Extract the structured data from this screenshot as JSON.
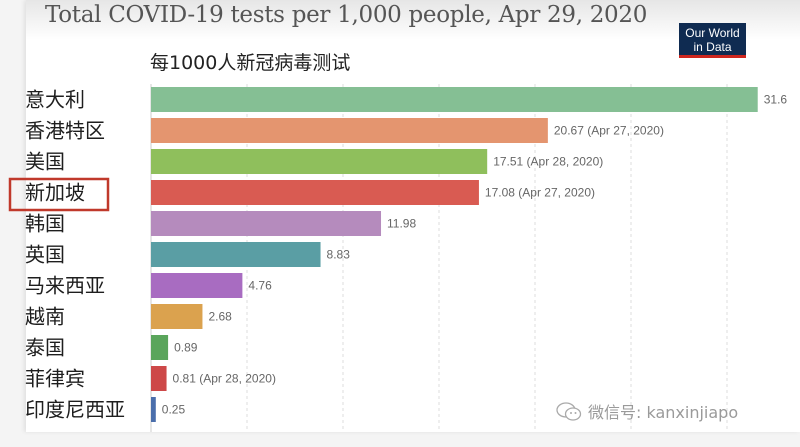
{
  "header": {
    "title": "Total COVID-19 tests per 1,000 people, Apr 29, 2020",
    "subtitle": "每1000人新冠病毒测试",
    "logo_line1": "Our World",
    "logo_line2": "in Data"
  },
  "watermark": {
    "text": "微信号: kanxinjiapo",
    "icon": "wechat-icon"
  },
  "highlight": {
    "category": "新加坡",
    "color": "#c0392b"
  },
  "chart_data": {
    "type": "bar",
    "orientation": "horizontal",
    "title": "Total COVID-19 tests per 1,000 people, Apr 29, 2020",
    "subtitle": "每1000人新冠病毒测试",
    "xlabel": "",
    "ylabel": "",
    "xlim": [
      0,
      35
    ],
    "grid": true,
    "gridline_step": 5,
    "categories": [
      "意大利",
      "香港特区",
      "美国",
      "新加坡",
      "韩国",
      "英国",
      "马来西亚",
      "越南",
      "泰国",
      "菲律宾",
      "印度尼西亚"
    ],
    "values": [
      31.6,
      20.67,
      17.51,
      17.08,
      11.98,
      8.83,
      4.76,
      2.68,
      0.89,
      0.81,
      0.25
    ],
    "value_labels": [
      "31.6",
      "20.67 (Apr 27, 2020)",
      "17.51 (Apr 28, 2020)",
      "17.08 (Apr 27, 2020)",
      "11.98",
      "8.83",
      "4.76",
      "2.68",
      "0.89",
      "0.81 (Apr 28, 2020)",
      "0.25"
    ],
    "colors": [
      "#85bf94",
      "#e4956f",
      "#8fbf5c",
      "#d95b52",
      "#b58bbd",
      "#5a9ea4",
      "#a86cc1",
      "#dba24e",
      "#5aa55b",
      "#cd4848",
      "#4a6eab"
    ]
  }
}
